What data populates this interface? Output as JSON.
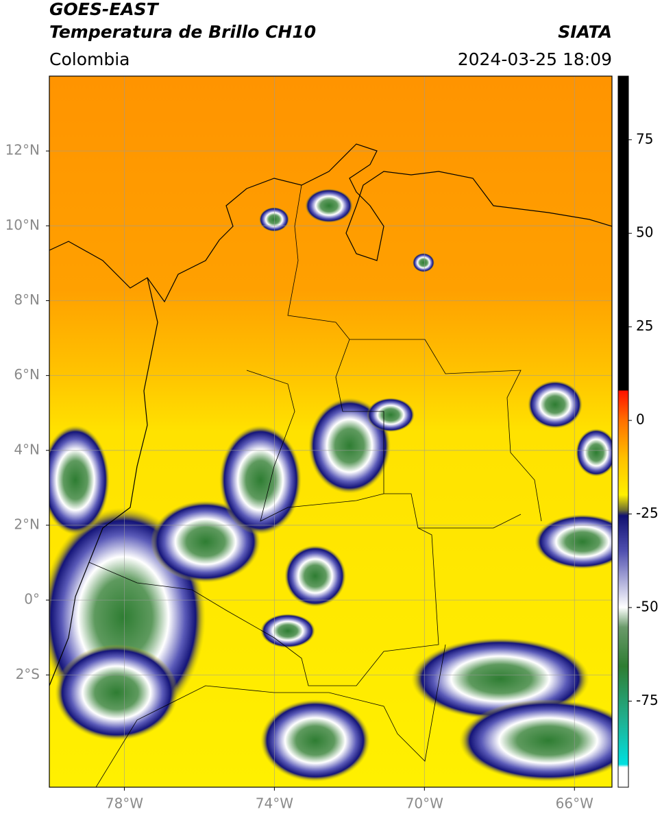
{
  "title": "GOES-EAST",
  "subtitle": "Temperatura de Brillo CH10",
  "organization": "SIATA",
  "region": "Colombia",
  "timestamp": "2024-03-25 18:09",
  "map": {
    "xlim": [
      -80,
      -65
    ],
    "ylim": [
      -5,
      14
    ],
    "xticks": [
      {
        "value": -78,
        "label": "78°W"
      },
      {
        "value": -74,
        "label": "74°W"
      },
      {
        "value": -70,
        "label": "70°W"
      },
      {
        "value": -66,
        "label": "66°W"
      }
    ],
    "yticks": [
      {
        "value": 12,
        "label": "12°N"
      },
      {
        "value": 10,
        "label": "10°N"
      },
      {
        "value": 8,
        "label": "8°N"
      },
      {
        "value": 6,
        "label": "6°N"
      },
      {
        "value": 4,
        "label": "4°N"
      },
      {
        "value": 2,
        "label": "2°N"
      },
      {
        "value": 0,
        "label": "0°"
      },
      {
        "value": -2,
        "label": "2°S"
      }
    ],
    "grid": true
  },
  "colorbar": {
    "lim": [
      -98,
      92
    ],
    "ticks": [
      75,
      50,
      25,
      0,
      -25,
      -50,
      -75
    ]
  }
}
